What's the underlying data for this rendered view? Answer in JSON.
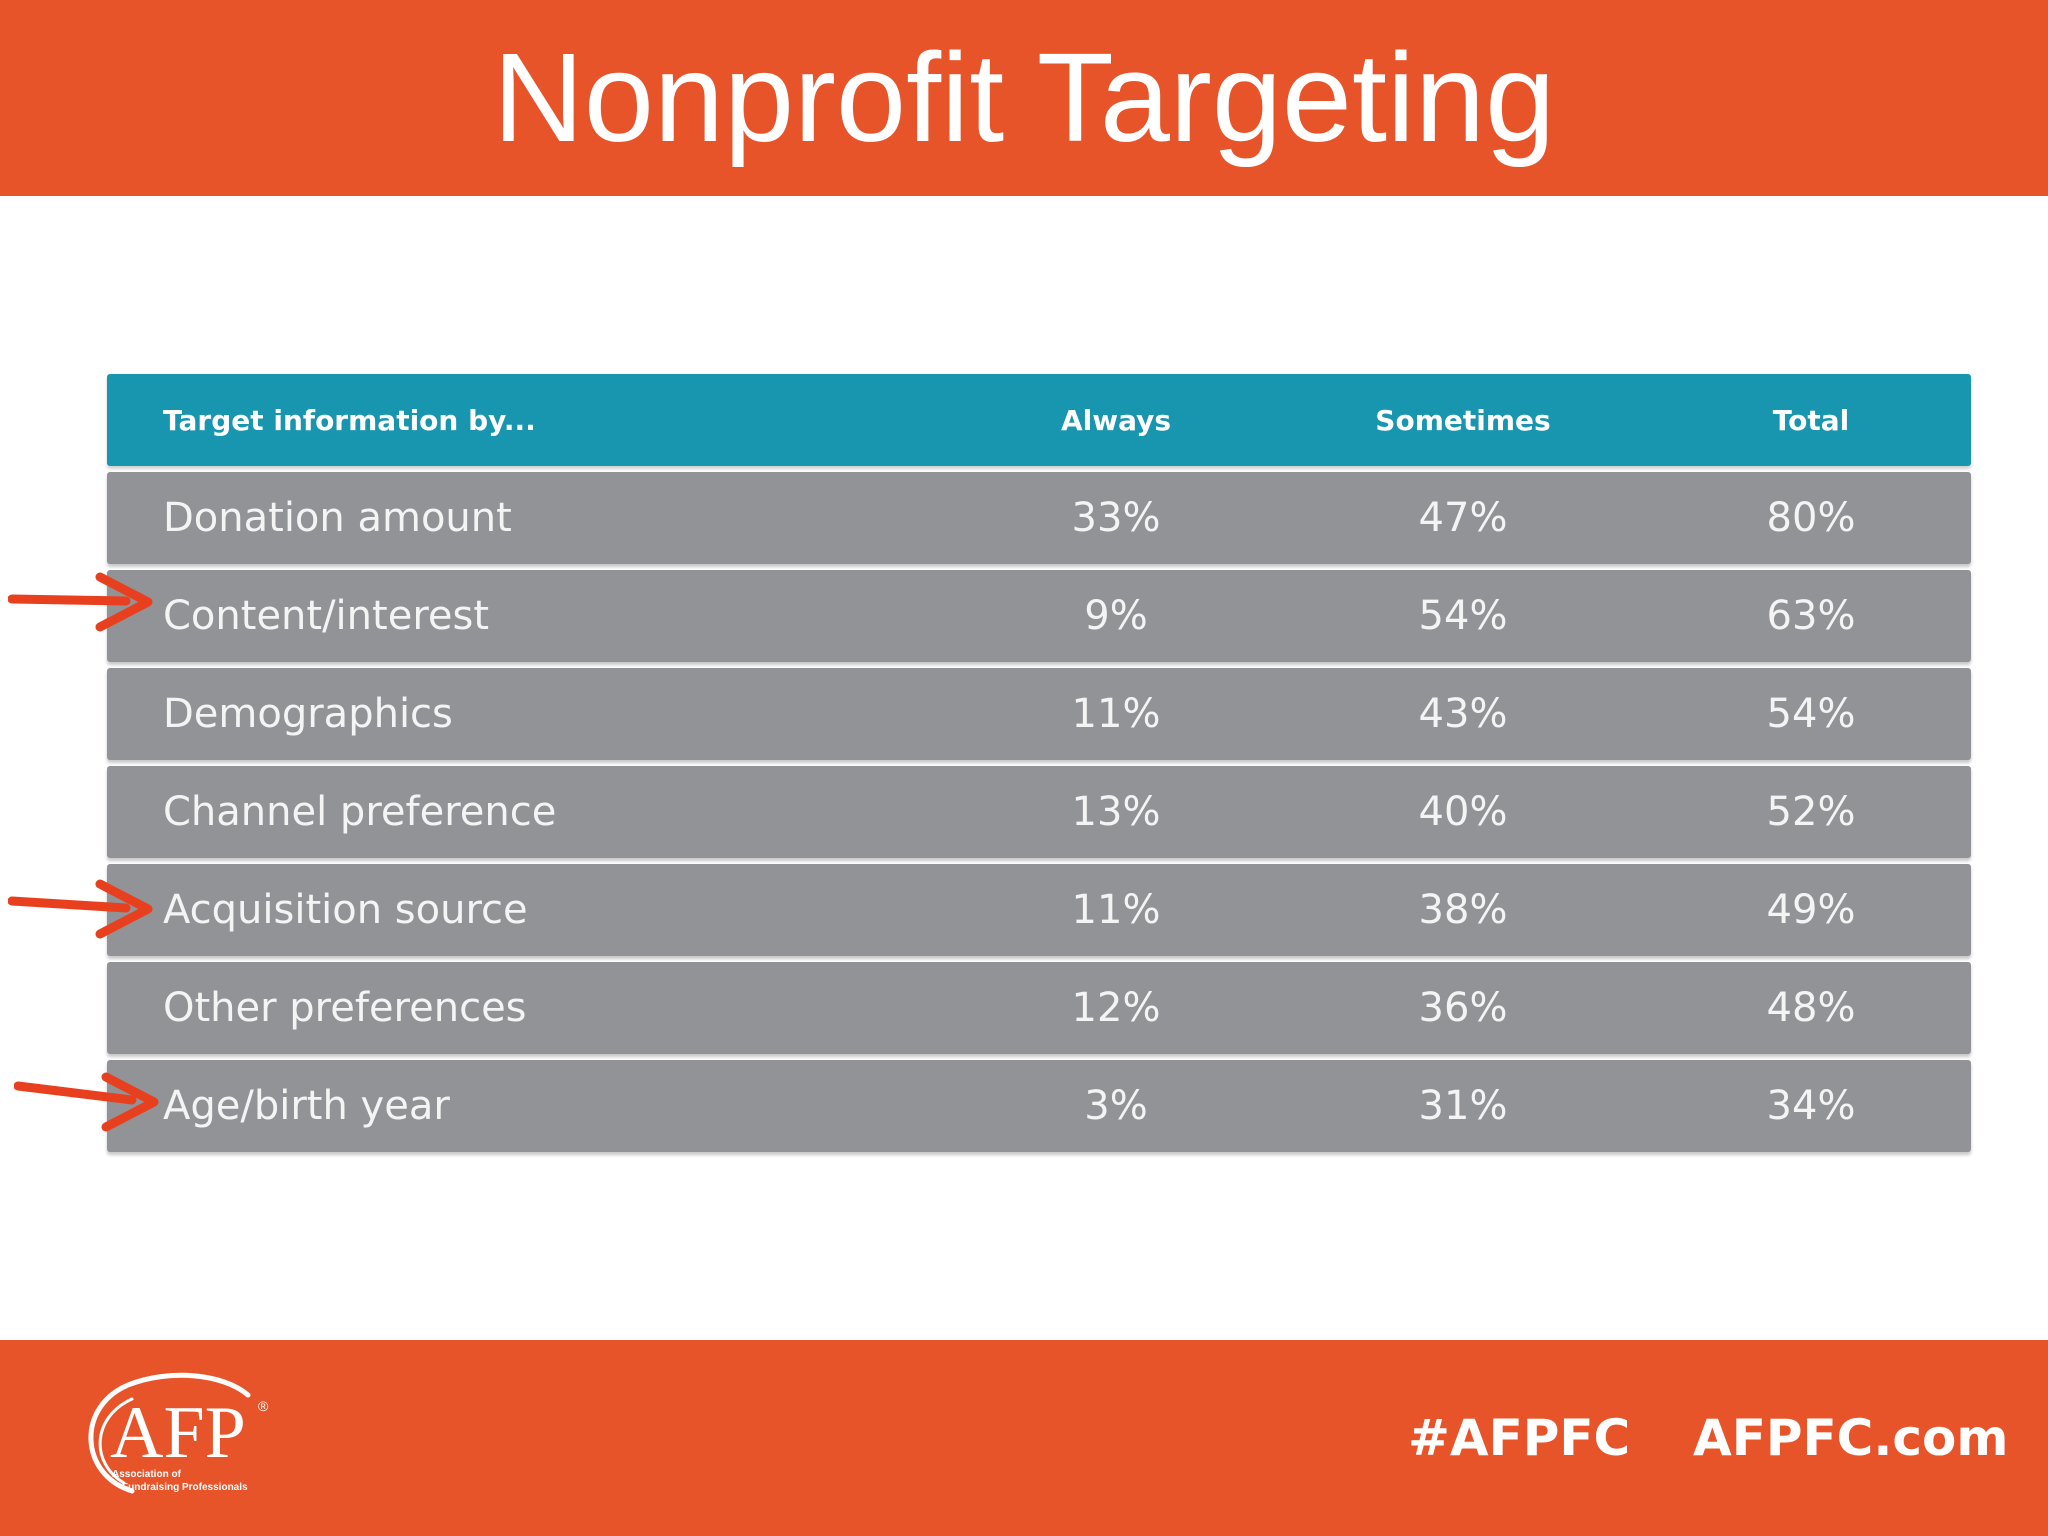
{
  "title": "Nonprofit Targeting",
  "table": {
    "headers": {
      "label": "Target information by...",
      "always": "Always",
      "sometimes": "Sometimes",
      "total": "Total"
    },
    "rows": [
      {
        "label": "Donation amount",
        "always": "33%",
        "sometimes": "47%",
        "total": "80%",
        "highlighted": false
      },
      {
        "label": "Content/interest",
        "always": "9%",
        "sometimes": "54%",
        "total": "63%",
        "highlighted": true
      },
      {
        "label": "Demographics",
        "always": "11%",
        "sometimes": "43%",
        "total": "54%",
        "highlighted": false
      },
      {
        "label": "Channel preference",
        "always": "13%",
        "sometimes": "40%",
        "total": "52%",
        "highlighted": false
      },
      {
        "label": "Acquisition source",
        "always": "11%",
        "sometimes": "38%",
        "total": "49%",
        "highlighted": true
      },
      {
        "label": "Other preferences",
        "always": "12%",
        "sometimes": "36%",
        "total": "48%",
        "highlighted": false
      },
      {
        "label": "Age/birth year",
        "always": "3%",
        "sometimes": "31%",
        "total": "34%",
        "highlighted": true
      }
    ]
  },
  "footer": {
    "logo_text": "AFP",
    "logo_registered": "®",
    "logo_subtitle_line1": "Association of",
    "logo_subtitle_line2": "Fundraising Professionals",
    "hashtag": "#AFPFC",
    "website": "AFPFC.com"
  },
  "colors": {
    "brand_orange": "#E8542A",
    "header_teal": "#1896AF",
    "row_gray": "#929397",
    "arrow_red": "#E8401E"
  },
  "icons": {
    "arrow": "arrow-right-icon"
  }
}
